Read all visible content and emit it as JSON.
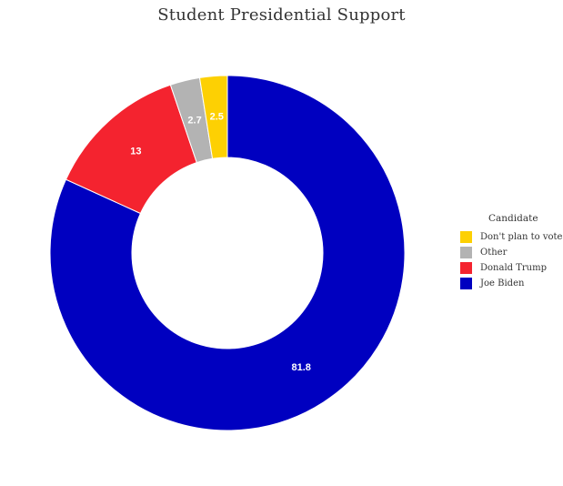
{
  "chart_data": {
    "type": "pie",
    "title": "Student Presidential Support",
    "donut": true,
    "legend": {
      "title": "Candidate",
      "position": "right"
    },
    "slices": [
      {
        "name": "Joe Biden",
        "value": 81.8,
        "label": "81.8",
        "color": "#0000c0"
      },
      {
        "name": "Donald Trump",
        "value": 13,
        "label": "13",
        "color": "#f4232f"
      },
      {
        "name": "Other",
        "value": 2.7,
        "label": "2.7",
        "color": "#b3b3b3"
      },
      {
        "name": "Don't plan to vote",
        "value": 2.5,
        "label": "2.5",
        "color": "#fdd003"
      }
    ],
    "legend_order": [
      "Don't plan to vote",
      "Other",
      "Donald Trump",
      "Joe Biden"
    ]
  }
}
